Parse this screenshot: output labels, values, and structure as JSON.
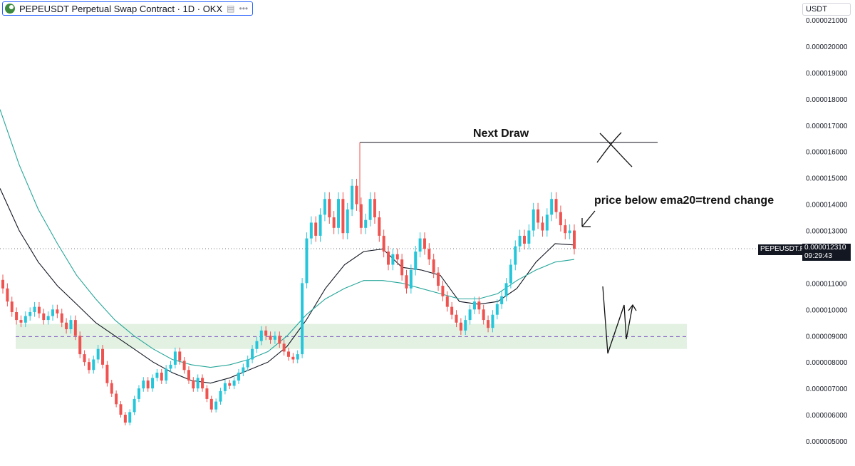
{
  "header": {
    "title": "PEPEUSDT Perpetual Swap Contract · 1D · OKX",
    "icons": [
      "okx-logo-icon",
      "chart-view-icon",
      "more-icon"
    ]
  },
  "currency_selector": "USDT",
  "last_price": {
    "symbol_label": "PEPEUSDT.P",
    "value": "0.000012310",
    "countdown": "09:29:43"
  },
  "annotations": {
    "next_draw": "Next Draw",
    "trend_note": "price below ema20=trend change"
  },
  "colors": {
    "up": "#26c6da",
    "down": "#ef5350",
    "ema_fast": "#131722",
    "ema_slow": "#26a69a",
    "zone_fill": "#e3f1e3",
    "zone_mid": "#7e57c2",
    "grid_text": "#131722"
  },
  "chart_data": {
    "type": "candlestick",
    "title": "PEPEUSDT Perpetual Swap Contract · 1D · OKX",
    "y_axis": {
      "position": "right",
      "ylim": [
        4.4e-06,
        2.11e-05
      ],
      "ticks": [
        "0.000021000",
        "0.000020000",
        "0.000019000",
        "0.000018000",
        "0.000017000",
        "0.000016000",
        "0.000015000",
        "0.000014000",
        "0.000013000",
        "0.000012000",
        "0.000011000",
        "0.000010000",
        "0.000009000",
        "0.000008000",
        "0.000007000",
        "0.000006000",
        "0.000005000"
      ]
    },
    "grid": false,
    "candles_close": [
      1.08e-05,
      1.03e-05,
      9.9e-06,
      9.6e-06,
      9.5e-06,
      9.75e-06,
      9.9e-06,
      1.01e-05,
      9.85e-06,
      9.6e-06,
      9.75e-06,
      1e-05,
      9.85e-06,
      9.5e-06,
      9.25e-06,
      9.6e-06,
      9e-06,
      8.3e-06,
      8e-06,
      7.7e-06,
      8.1e-06,
      8.5e-06,
      7.9e-06,
      7.2e-06,
      6.8e-06,
      6.4e-06,
      6e-06,
      5.7e-06,
      6.1e-06,
      6.6e-06,
      7e-06,
      7.3e-06,
      7e-06,
      7.4e-06,
      7.6e-06,
      7.3e-06,
      7.75e-06,
      7.9e-06,
      8.4e-06,
      8.05e-06,
      7.7e-06,
      7.3e-06,
      7e-06,
      7.4e-06,
      7e-06,
      6.6e-06,
      6.2e-06,
      6.5e-06,
      6.9e-06,
      7.2e-06,
      7.1e-06,
      7.3e-06,
      7.6e-06,
      7.8e-06,
      8.1e-06,
      8.5e-06,
      8.8e-06,
      9.2e-06,
      9e-06,
      8.85e-06,
      9e-06,
      8.7e-06,
      8.4e-06,
      8.2e-06,
      8.1e-06,
      8.3e-06,
      1.1e-05,
      1.27e-05,
      1.33e-05,
      1.28e-05,
      1.36e-05,
      1.42e-05,
      1.35e-05,
      1.31e-05,
      1.42e-05,
      1.29e-05,
      1.38e-05,
      1.47e-05,
      1.4e-05,
      1.31e-05,
      1.34e-05,
      1.42e-05,
      1.35e-05,
      1.28e-05,
      1.22e-05,
      1.17e-05,
      1.21e-05,
      1.19e-05,
      1.13e-05,
      1.08e-05,
      1.15e-05,
      1.22e-05,
      1.27e-05,
      1.23e-05,
      1.19e-05,
      1.14e-05,
      1.09e-05,
      1.05e-05,
      1.01e-05,
      9.8e-06,
      9.5e-06,
      9.2e-06,
      9.6e-06,
      1e-05,
      1.03e-05,
      1e-05,
      9.6e-06,
      9.3e-06,
      9.8e-06,
      1.02e-05,
      1.05e-05,
      1.1e-05,
      1.17e-05,
      1.24e-05,
      1.28e-05,
      1.25e-05,
      1.3e-05,
      1.38e-05,
      1.33e-05,
      1.3e-05,
      1.36e-05,
      1.42e-05,
      1.37e-05,
      1.32e-05,
      1.29e-05,
      1.3e-05,
      1.231e-05
    ],
    "series": [
      {
        "name": "",
        "kind": "ema_fast",
        "values": [
          1.46e-05,
          1.3e-05,
          1.18e-05,
          1.09e-05,
          1.02e-05,
          9.5e-06,
          9e-06,
          8.5e-06,
          8e-06,
          7.6e-06,
          7.3e-06,
          7.2e-06,
          7.4e-06,
          7.7e-06,
          8e-06,
          8.6e-06,
          9.6e-06,
          1.08e-05,
          1.17e-05,
          1.22e-05,
          1.23e-05,
          1.16e-05,
          1.15e-05,
          1.13e-05,
          1.03e-05,
          1.02e-05,
          1.03e-05,
          1.08e-05,
          1.18e-05,
          1.25e-05,
          1.245e-05
        ]
      },
      {
        "name": "",
        "kind": "ema_slow",
        "values": [
          1.76e-05,
          1.55e-05,
          1.38e-05,
          1.25e-05,
          1.13e-05,
          1.04e-05,
          9.6e-06,
          9e-06,
          8.5e-06,
          8.1e-06,
          7.9e-06,
          7.8e-06,
          7.9e-06,
          8.1e-06,
          8.4e-06,
          9e-06,
          9.8e-06,
          1.04e-05,
          1.08e-05,
          1.11e-05,
          1.11e-05,
          1.1e-05,
          1.08e-05,
          1.06e-05,
          1.04e-05,
          1.04e-05,
          1.06e-05,
          1.11e-05,
          1.15e-05,
          1.18e-05,
          1.19e-05
        ]
      }
    ],
    "next_draw_level": 1.635e-05,
    "zone": {
      "low": 8.5e-06,
      "high": 9.45e-06,
      "mid": 8.97e-06
    },
    "last_price": 1.231e-05
  }
}
